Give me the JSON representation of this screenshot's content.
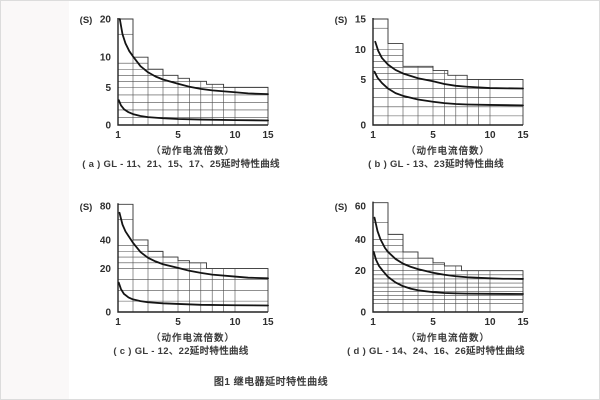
{
  "figure_caption": "图1  继电器延时特性曲线",
  "chart_data": [
    {
      "id": "a",
      "type": "line",
      "caption": "( a ) GL - 11、21、15、17、25延时特性曲线",
      "xlabel": "（动作电流倍数）",
      "ylabel": "(S)",
      "x_ticks": [
        1,
        5,
        10,
        15
      ],
      "y_ticks": [
        0,
        5,
        10,
        20
      ],
      "xlim": [
        1,
        15
      ],
      "ylim": [
        0,
        20
      ],
      "grid": true,
      "legend": "none",
      "x_anchors": [
        [
          1,
          0
        ],
        [
          5,
          0.4
        ],
        [
          10,
          0.78
        ],
        [
          15,
          1.0
        ]
      ],
      "y_anchors": [
        [
          0,
          0
        ],
        [
          5,
          0.355
        ],
        [
          10,
          0.64
        ],
        [
          20,
          1.0
        ]
      ],
      "envelope_steps": [
        [
          2,
          20
        ],
        [
          3,
          10
        ],
        [
          4,
          8
        ],
        [
          5,
          7
        ],
        [
          6,
          6.5
        ],
        [
          7.5,
          6
        ],
        [
          9,
          5.5
        ],
        [
          15,
          5
        ]
      ],
      "hlines": [
        1,
        2,
        3,
        4,
        5,
        6,
        7,
        8,
        9,
        16
      ],
      "vlines": [
        2,
        3,
        4,
        5,
        6,
        7,
        8,
        9,
        10
      ],
      "series": [
        {
          "name": "upper-limit-curve",
          "points": [
            [
              1.12,
              20
            ],
            [
              1.3,
              16
            ],
            [
              1.5,
              13.6
            ],
            [
              1.75,
              11.6
            ],
            [
              2,
              10.2
            ],
            [
              2.5,
              8.5
            ],
            [
              3,
              7.5
            ],
            [
              3.5,
              6.8
            ],
            [
              4,
              6.3
            ],
            [
              5,
              5.6
            ],
            [
              6,
              5.1
            ],
            [
              7,
              4.8
            ],
            [
              8,
              4.6
            ],
            [
              10,
              4.35
            ],
            [
              12,
              4.2
            ],
            [
              15,
              4.1
            ]
          ]
        },
        {
          "name": "lower-limit-curve",
          "points": [
            [
              1.05,
              3.3
            ],
            [
              1.2,
              2.6
            ],
            [
              1.4,
              2.1
            ],
            [
              1.7,
              1.7
            ],
            [
              2,
              1.45
            ],
            [
              2.5,
              1.2
            ],
            [
              3,
              1.05
            ],
            [
              4,
              0.9
            ],
            [
              5,
              0.8
            ],
            [
              7,
              0.72
            ],
            [
              10,
              0.65
            ],
            [
              15,
              0.6
            ]
          ]
        }
      ]
    },
    {
      "id": "b",
      "type": "line",
      "caption": "( b ) GL - 13、23延时特性曲线",
      "xlabel": "（动作电流倍数）",
      "ylabel": "(S)",
      "x_ticks": [
        1,
        5,
        10,
        15
      ],
      "y_ticks": [
        0,
        5,
        10,
        15
      ],
      "xlim": [
        1,
        15
      ],
      "ylim": [
        0,
        15
      ],
      "grid": true,
      "legend": "none",
      "x_anchors": [
        [
          1,
          0
        ],
        [
          5,
          0.4
        ],
        [
          10,
          0.78
        ],
        [
          15,
          1.0
        ]
      ],
      "y_anchors": [
        [
          0,
          0
        ],
        [
          5,
          0.43
        ],
        [
          10,
          0.71
        ],
        [
          15,
          1.0
        ]
      ],
      "envelope_steps": [
        [
          2,
          15
        ],
        [
          3,
          11
        ],
        [
          5,
          7.2
        ],
        [
          6.3,
          6.5
        ],
        [
          8,
          5.7
        ],
        [
          15,
          5
        ]
      ],
      "hlines": [
        1,
        2,
        3,
        4,
        5,
        6,
        7,
        8,
        9,
        10,
        13.5
      ],
      "vlines": [
        2,
        3,
        4,
        5,
        6,
        7,
        8,
        9,
        10
      ],
      "series": [
        {
          "name": "upper-limit-curve",
          "points": [
            [
              1.15,
              11.3
            ],
            [
              1.35,
              9.8
            ],
            [
              1.6,
              8.6
            ],
            [
              2,
              7.5
            ],
            [
              2.5,
              6.6
            ],
            [
              3,
              6.0
            ],
            [
              4,
              5.2
            ],
            [
              5,
              4.8
            ],
            [
              6,
              4.5
            ],
            [
              7,
              4.3
            ],
            [
              8,
              4.2
            ],
            [
              10,
              4.05
            ],
            [
              15,
              4.0
            ]
          ]
        },
        {
          "name": "lower-limit-curve",
          "points": [
            [
              1.1,
              6.3
            ],
            [
              1.3,
              5.3
            ],
            [
              1.6,
              4.6
            ],
            [
              2,
              4.0
            ],
            [
              2.5,
              3.5
            ],
            [
              3,
              3.2
            ],
            [
              4,
              2.8
            ],
            [
              5,
              2.55
            ],
            [
              6,
              2.4
            ],
            [
              7,
              2.3
            ],
            [
              8,
              2.25
            ],
            [
              10,
              2.2
            ],
            [
              15,
              2.15
            ]
          ]
        }
      ]
    },
    {
      "id": "c",
      "type": "line",
      "caption": "( c ) GL - 12、22延时特性曲线",
      "xlabel": "（动作电流倍数）",
      "ylabel": "(S)",
      "x_ticks": [
        1,
        5,
        10,
        15
      ],
      "y_ticks": [
        0,
        20,
        40,
        80
      ],
      "xlim": [
        1,
        15
      ],
      "ylim": [
        0,
        80
      ],
      "grid": true,
      "legend": "none",
      "x_anchors": [
        [
          1,
          0
        ],
        [
          5,
          0.4
        ],
        [
          10,
          0.78
        ],
        [
          15,
          1.0
        ]
      ],
      "y_anchors": [
        [
          0,
          0
        ],
        [
          20,
          0.41
        ],
        [
          40,
          0.68
        ],
        [
          80,
          1.0
        ]
      ],
      "envelope_steps": [
        [
          2,
          82
        ],
        [
          3,
          40
        ],
        [
          4,
          32
        ],
        [
          5,
          28
        ],
        [
          6,
          25.5
        ],
        [
          7.5,
          24
        ],
        [
          15,
          20
        ]
      ],
      "hlines": [
        5,
        10,
        15,
        20,
        24,
        28,
        32,
        36,
        64
      ],
      "vlines": [
        2,
        3,
        4,
        5,
        6,
        7,
        8,
        9,
        10
      ],
      "series": [
        {
          "name": "upper-limit-curve",
          "points": [
            [
              1.1,
              72
            ],
            [
              1.3,
              58
            ],
            [
              1.5,
              50
            ],
            [
              1.8,
              42
            ],
            [
              2,
              38
            ],
            [
              2.5,
              31.5
            ],
            [
              3,
              27.5
            ],
            [
              3.5,
              25
            ],
            [
              4,
              23
            ],
            [
              5,
              20.5
            ],
            [
              6,
              19
            ],
            [
              7,
              18
            ],
            [
              8,
              17.2
            ],
            [
              10,
              16.3
            ],
            [
              12,
              15.8
            ],
            [
              15,
              15.5
            ]
          ]
        },
        {
          "name": "lower-limit-curve",
          "points": [
            [
              1.05,
              13.5
            ],
            [
              1.2,
              10.5
            ],
            [
              1.4,
              8.3
            ],
            [
              1.7,
              6.7
            ],
            [
              2,
              5.8
            ],
            [
              2.5,
              5.0
            ],
            [
              3,
              4.5
            ],
            [
              4,
              4.0
            ],
            [
              5,
              3.7
            ],
            [
              7,
              3.3
            ],
            [
              10,
              3.1
            ],
            [
              15,
              3.0
            ]
          ]
        }
      ]
    },
    {
      "id": "d",
      "type": "line",
      "caption": "( d ) GL - 14、24、16、26延时特性曲线",
      "xlabel": "（动作电流倍数）",
      "ylabel": "(S)",
      "x_ticks": [
        1,
        5,
        10,
        15
      ],
      "y_ticks": [
        0,
        20,
        40,
        60
      ],
      "xlim": [
        1,
        15
      ],
      "ylim": [
        0,
        60
      ],
      "grid": true,
      "legend": "none",
      "x_anchors": [
        [
          1,
          0
        ],
        [
          5,
          0.4
        ],
        [
          10,
          0.78
        ],
        [
          15,
          1.0
        ]
      ],
      "y_anchors": [
        [
          0,
          0
        ],
        [
          20,
          0.39
        ],
        [
          40,
          0.685
        ],
        [
          60,
          1.0
        ]
      ],
      "envelope_steps": [
        [
          2,
          62
        ],
        [
          3,
          43
        ],
        [
          4,
          32
        ],
        [
          5,
          28
        ],
        [
          6,
          25
        ],
        [
          7.5,
          23
        ],
        [
          15,
          20
        ]
      ],
      "hlines": [
        4,
        6,
        8,
        10,
        12,
        14,
        16,
        18,
        20,
        24,
        28,
        32,
        36,
        40,
        50
      ],
      "vlines": [
        2,
        3,
        4,
        5,
        6,
        7,
        8,
        9,
        10
      ],
      "series": [
        {
          "name": "upper-limit-curve",
          "points": [
            [
              1.1,
              53
            ],
            [
              1.3,
              45
            ],
            [
              1.5,
              40
            ],
            [
              1.8,
              34.5
            ],
            [
              2,
              32
            ],
            [
              2.5,
              27.5
            ],
            [
              3,
              24.5
            ],
            [
              3.5,
              22.5
            ],
            [
              4,
              21
            ],
            [
              5,
              19
            ],
            [
              6,
              18
            ],
            [
              7,
              17.3
            ],
            [
              8,
              16.8
            ],
            [
              10,
              16.3
            ],
            [
              12,
              16.1
            ],
            [
              15,
              16
            ]
          ]
        },
        {
          "name": "lower-limit-curve",
          "points": [
            [
              1.05,
              32
            ],
            [
              1.2,
              27
            ],
            [
              1.4,
              23
            ],
            [
              1.7,
              19.5
            ],
            [
              2,
              17
            ],
            [
              2.5,
              14.3
            ],
            [
              3,
              12.5
            ],
            [
              3.5,
              11.3
            ],
            [
              4,
              10.5
            ],
            [
              5,
              9.6
            ],
            [
              6,
              9.2
            ],
            [
              7,
              9.0
            ],
            [
              8,
              8.9
            ],
            [
              10,
              8.8
            ],
            [
              15,
              8.7
            ]
          ]
        }
      ]
    }
  ]
}
